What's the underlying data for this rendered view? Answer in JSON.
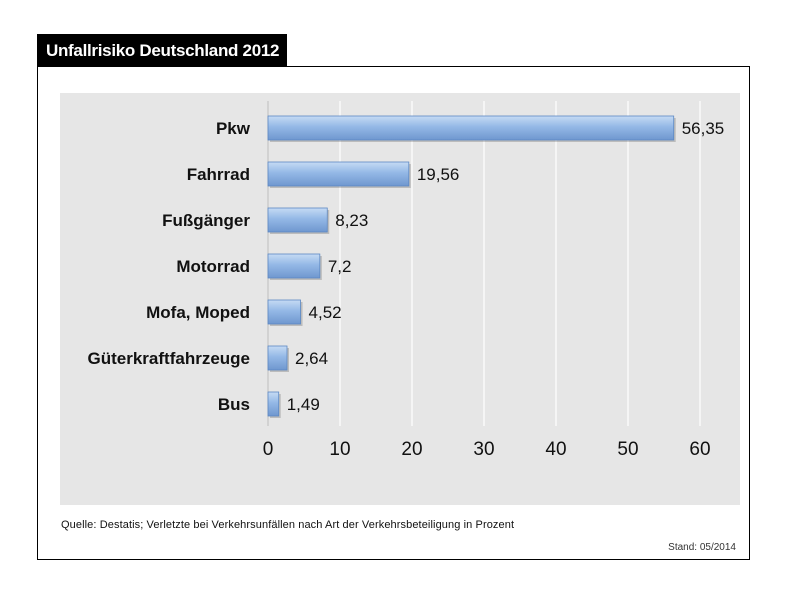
{
  "title": "Unfallrisiko Deutschland 2012",
  "source_note": "Quelle: Destatis; Verletzte bei Verkehrsunfällen nach Art der Verkehrsbeteiligung in Prozent",
  "stand_note": "Stand: 05/2014",
  "colors": {
    "bar_fill": "#8fb4e3",
    "bar_stroke": "#5d88c2",
    "panel_bg": "#e6e6e6",
    "grid": "#ffffff"
  },
  "chart_data": {
    "type": "bar",
    "orientation": "horizontal",
    "categories": [
      "Pkw",
      "Fahrrad",
      "Fußgänger",
      "Motorrad",
      "Mofa, Moped",
      "Güterkraftfahrzeuge",
      "Bus"
    ],
    "values": [
      56.35,
      19.56,
      8.23,
      7.2,
      4.52,
      2.64,
      1.49
    ],
    "value_labels": [
      "56,35",
      "19,56",
      "8,23",
      "7,2",
      "4,52",
      "2,64",
      "1,49"
    ],
    "x_ticks": [
      "0",
      "10",
      "20",
      "30",
      "40",
      "50",
      "60"
    ],
    "xlim": [
      0,
      60
    ],
    "grid": true,
    "title": "Unfallrisiko Deutschland 2012",
    "xlabel": "",
    "ylabel": ""
  }
}
